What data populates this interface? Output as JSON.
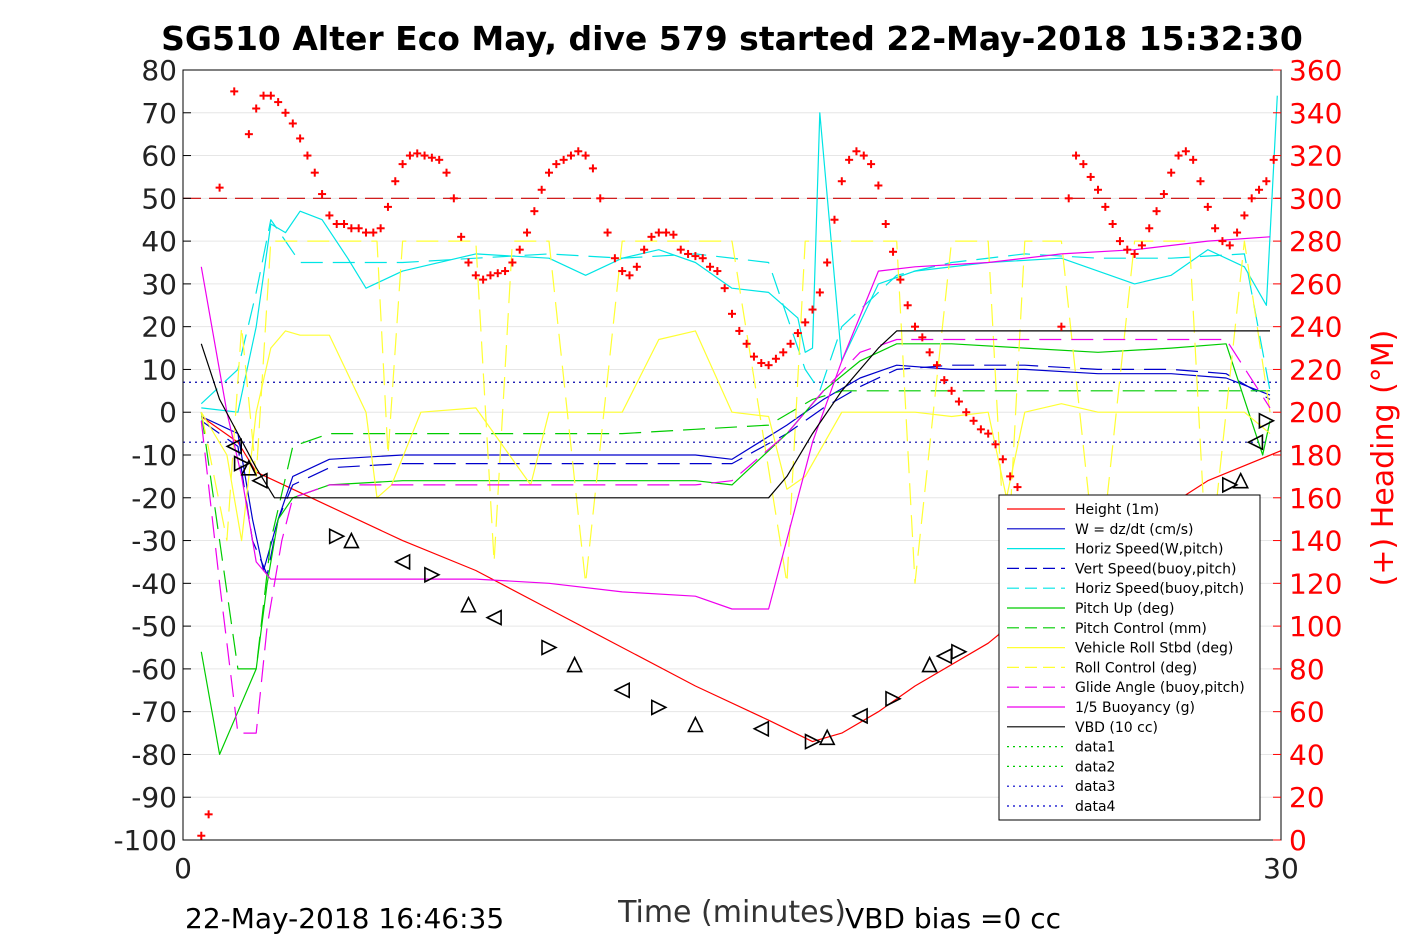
{
  "footer": {
    "timestamp": "22-May-2018 16:46:35",
    "vbd_bias": "VBD bias =0 cc"
  },
  "chart_data": {
    "type": "line",
    "title": "SG510 Alter Eco May, dive 579 started 22-May-2018 15:32:30",
    "xlabel": "Time (minutes)",
    "ylabel": "",
    "y2label": "(+) Heading (°M)",
    "xlim": [
      0,
      30
    ],
    "ylim": [
      -100,
      80
    ],
    "y2lim": [
      0,
      360
    ],
    "xticks": [
      0,
      30
    ],
    "yticks": [
      80,
      70,
      60,
      50,
      40,
      30,
      20,
      10,
      0,
      -10,
      -20,
      -30,
      -40,
      -50,
      -60,
      -70,
      -80,
      -90,
      -100
    ],
    "y2ticks": [
      360,
      340,
      320,
      300,
      280,
      260,
      240,
      220,
      200,
      180,
      160,
      140,
      120,
      100,
      80,
      60,
      40,
      20,
      0
    ],
    "grid": true,
    "legend_position": "lower-right",
    "colors": {
      "heading": "#ff0000",
      "axis": "#000000",
      "right_axis": "#ff0000"
    },
    "reference_lines": [
      {
        "y2": 300,
        "style": "dashed",
        "color": "#cc0000"
      },
      {
        "y": 7,
        "style": "dotted",
        "color": "#0000aa"
      },
      {
        "y": -7,
        "style": "dotted",
        "color": "#0000aa"
      }
    ],
    "series": [
      {
        "name": "Height (1m)",
        "color": "#ff0000",
        "dash": "",
        "x": [
          0.5,
          1.5,
          2.0,
          4,
          6,
          8,
          10,
          12,
          14,
          16,
          17.2,
          18,
          19,
          20,
          22,
          24,
          26,
          28,
          30
        ],
        "y": [
          -1,
          -7,
          -14,
          -22,
          -30,
          -37,
          -46,
          -55,
          -64,
          -72,
          -77,
          -75,
          -70,
          -64,
          -54,
          -40,
          -27,
          -16,
          -9
        ]
      },
      {
        "name": "W = dz/dt (cm/s)",
        "color": "#0000cc",
        "dash": "",
        "x": [
          0.5,
          1.5,
          1.9,
          2.2,
          2.6,
          3,
          4,
          6,
          8,
          10,
          12,
          14,
          15,
          16.5,
          17.5,
          18.5,
          19.5,
          21,
          23,
          25,
          27,
          28.5,
          29.7
        ],
        "y": [
          -1,
          -5,
          -25,
          -37,
          -25,
          -15,
          -11,
          -10,
          -10,
          -10,
          -10,
          -10,
          -11,
          -3,
          3,
          8,
          11,
          10,
          10,
          9,
          9,
          8,
          4
        ]
      },
      {
        "name": "Horiz Speed(W,pitch)",
        "color": "#00e5e5",
        "dash": "",
        "x": [
          0.5,
          1.5,
          2.0,
          2.4,
          2.8,
          3.2,
          3.8,
          4.5,
          5,
          6,
          8,
          10,
          11,
          12,
          13,
          14,
          15,
          16,
          16.8,
          17.0,
          17.2,
          17.4,
          18,
          19,
          20,
          22,
          24,
          26,
          27,
          28,
          29,
          29.6,
          29.9
        ],
        "y": [
          1,
          0,
          20,
          44,
          42,
          47,
          45,
          36,
          29,
          33,
          37,
          36,
          32,
          36,
          38,
          35,
          29,
          28,
          22,
          14,
          15,
          70,
          12,
          30,
          33,
          35,
          36,
          30,
          32,
          38,
          34,
          25,
          74
        ]
      },
      {
        "name": "Vert Speed(buoy,pitch)",
        "color": "#0000cc",
        "dash": "22 10",
        "x": [
          0.5,
          1.5,
          1.9,
          2.3,
          2.6,
          3,
          4,
          6,
          8,
          10,
          12,
          14,
          15,
          16.5,
          17.5,
          18.5,
          19.5,
          21,
          23,
          25,
          27,
          28.5,
          29.7
        ],
        "y": [
          -2,
          -8,
          -30,
          -38,
          -25,
          -17,
          -13,
          -12,
          -12,
          -12,
          -12,
          -12,
          -12,
          -5,
          1,
          6,
          10,
          11,
          11,
          10,
          10,
          9,
          3
        ]
      },
      {
        "name": "Horiz Speed(buoy,pitch)",
        "color": "#00e5e5",
        "dash": "22 10",
        "x": [
          0.5,
          1.5,
          2.0,
          2.4,
          2.8,
          3.2,
          4,
          6,
          8,
          10,
          12,
          14,
          16,
          17.0,
          17.4,
          18,
          19.5,
          21,
          23,
          25,
          27,
          29,
          29.7
        ],
        "y": [
          2,
          10,
          28,
          45,
          40,
          35,
          35,
          35,
          36,
          37,
          36,
          37,
          35,
          10,
          5,
          20,
          32,
          35,
          37,
          36,
          36,
          37,
          5
        ]
      },
      {
        "name": "Pitch Up (deg)",
        "color": "#00cc00",
        "dash": "",
        "x": [
          0.5,
          1.0,
          1.5,
          2.0,
          2.3,
          2.6,
          3,
          4,
          6,
          8,
          10,
          12,
          14,
          15,
          16.5,
          17.5,
          18.5,
          19.5,
          21,
          23,
          25,
          27,
          28.5,
          29.5,
          29.7
        ],
        "y": [
          -56,
          -80,
          -70,
          -60,
          -40,
          -25,
          -20,
          -17,
          -16,
          -16,
          -16,
          -16,
          -16,
          -17,
          -5,
          5,
          12,
          16,
          16,
          15,
          14,
          15,
          16,
          -10,
          -2
        ]
      },
      {
        "name": "Pitch Control (mm)",
        "color": "#00cc00",
        "dash": "22 10",
        "x": [
          0.5,
          1.0,
          1.5,
          2.0,
          2.4,
          3,
          4,
          6,
          8,
          10,
          12,
          14,
          16,
          17.2,
          18,
          20,
          22,
          24,
          26,
          28,
          29.7
        ],
        "y": [
          0,
          -30,
          -60,
          -60,
          -30,
          -8,
          -5,
          -5,
          -5,
          -5,
          -5,
          -4,
          -3,
          3,
          5,
          5,
          5,
          5,
          5,
          5,
          5
        ]
      },
      {
        "name": "Vehicle Roll Stbd (deg)",
        "color": "#ffff33",
        "dash": "",
        "x": [
          0.5,
          1.2,
          1.6,
          2.0,
          2.4,
          2.8,
          3.2,
          4,
          5,
          5.3,
          5.7,
          6.5,
          8,
          9.5,
          10,
          11,
          12,
          13,
          14,
          15,
          16,
          16.5,
          17,
          18,
          19,
          20,
          21,
          22,
          22.5,
          23,
          24,
          25,
          26,
          27,
          28,
          29,
          29.7
        ],
        "y": [
          0,
          -10,
          -30,
          0,
          15,
          19,
          18,
          18,
          0,
          -20,
          -17,
          0,
          1,
          -17,
          0,
          0,
          0,
          17,
          19,
          0,
          -1,
          -18,
          -15,
          0,
          0,
          0,
          -1,
          0,
          -20,
          0,
          2,
          0,
          0,
          0,
          0,
          0,
          -5
        ]
      },
      {
        "name": "Roll Control (deg)",
        "color": "#ffff33",
        "dash": "22 10",
        "x": [
          0.5,
          1.2,
          1.6,
          2.0,
          2.4,
          2.8,
          3.2,
          4,
          5.3,
          5.6,
          6,
          8,
          8.5,
          9,
          10,
          11,
          12,
          13,
          14,
          15,
          16.5,
          17,
          18,
          19.5,
          20,
          21,
          22,
          22.5,
          23,
          24,
          25,
          26,
          27.5,
          28,
          29,
          29.7
        ],
        "y": [
          0,
          -30,
          20,
          -15,
          40,
          40,
          40,
          40,
          40,
          -10,
          40,
          40,
          -35,
          40,
          40,
          -40,
          40,
          40,
          40,
          40,
          -40,
          40,
          40,
          40,
          -40,
          40,
          40,
          -40,
          40,
          40,
          -40,
          40,
          40,
          -40,
          40,
          0
        ]
      },
      {
        "name": "Glide Angle (buoy,pitch)",
        "color": "#ee00ee",
        "dash": "22 10",
        "x": [
          0.5,
          1.0,
          1.5,
          2.0,
          2.3,
          2.7,
          3,
          4,
          6,
          8,
          10,
          12,
          14,
          15,
          16.5,
          17.5,
          18.5,
          19.5,
          21,
          23,
          25,
          27,
          28.5,
          29.7
        ],
        "y": [
          -2,
          -40,
          -75,
          -75,
          -50,
          -30,
          -20,
          -17,
          -17,
          -17,
          -17,
          -17,
          -17,
          -16,
          -5,
          5,
          14,
          17,
          17,
          17,
          17,
          17,
          17,
          1
        ]
      },
      {
        "name": "1/5 Buoyancy (g)",
        "color": "#ee00ee",
        "dash": "",
        "x": [
          0.5,
          1.2,
          1.6,
          2.0,
          2.4,
          2.8,
          4,
          6,
          8,
          10,
          12,
          14,
          15,
          16,
          17.2,
          18,
          19,
          20,
          22,
          24,
          26,
          28,
          29.7
        ],
        "y": [
          34,
          0,
          -15,
          -35,
          -39,
          -39,
          -39,
          -39,
          -39,
          -40,
          -42,
          -43,
          -46,
          -46,
          -7,
          12,
          33,
          34,
          35,
          37,
          38,
          40,
          41
        ]
      },
      {
        "name": "VBD (10 cc)",
        "color": "#000000",
        "dash": "",
        "x": [
          0.5,
          1.0,
          1.5,
          2.0,
          2.5,
          4,
          6,
          8,
          10,
          12,
          14,
          16,
          16.5,
          17.2,
          18,
          19,
          19.5,
          20,
          22,
          24,
          26,
          28,
          29.7
        ],
        "y": [
          16,
          3,
          -5,
          -13,
          -20,
          -20,
          -20,
          -20,
          -20,
          -20,
          -20,
          -20,
          -15,
          -5,
          5,
          15,
          19,
          19,
          19,
          19,
          19,
          19,
          19
        ]
      },
      {
        "name": "data1",
        "color": "#00cc00",
        "dash": "2 4",
        "x": [],
        "y": []
      },
      {
        "name": "data2",
        "color": "#00cc00",
        "dash": "2 4",
        "x": [],
        "y": []
      },
      {
        "name": "data3",
        "color": "#0000cc",
        "dash": "2 4",
        "x": [],
        "y": []
      },
      {
        "name": "data4",
        "color": "#0000cc",
        "dash": "2 4",
        "x": [],
        "y": []
      }
    ],
    "heading_points": {
      "color": "#ff0000",
      "x": [
        0.5,
        0.7,
        1.0,
        1.4,
        1.8,
        2.0,
        2.2,
        2.4,
        2.6,
        2.8,
        3.0,
        3.2,
        3.4,
        3.6,
        3.8,
        4.0,
        4.2,
        4.4,
        4.6,
        4.8,
        5.0,
        5.2,
        5.4,
        5.6,
        5.8,
        6.0,
        6.2,
        6.4,
        6.6,
        6.8,
        7.0,
        7.2,
        7.4,
        7.6,
        7.8,
        8.0,
        8.2,
        8.4,
        8.6,
        8.8,
        9.0,
        9.2,
        9.4,
        9.6,
        9.8,
        10.0,
        10.2,
        10.4,
        10.6,
        10.8,
        11.0,
        11.2,
        11.4,
        11.6,
        11.8,
        12.0,
        12.2,
        12.4,
        12.6,
        12.8,
        13.0,
        13.2,
        13.4,
        13.6,
        13.8,
        14.0,
        14.2,
        14.4,
        14.6,
        14.8,
        15.0,
        15.2,
        15.4,
        15.6,
        15.8,
        16.0,
        16.2,
        16.4,
        16.6,
        16.8,
        17.0,
        17.2,
        17.4,
        17.6,
        17.8,
        18.0,
        18.2,
        18.4,
        18.6,
        18.8,
        19.0,
        19.2,
        19.4,
        19.6,
        19.8,
        20.0,
        20.2,
        20.4,
        20.6,
        20.8,
        21.0,
        21.2,
        21.4,
        21.6,
        21.8,
        22.0,
        22.2,
        22.4,
        22.6,
        22.8,
        23.0,
        23.2,
        23.4,
        23.6,
        23.8,
        24.0,
        24.2,
        24.4,
        24.6,
        24.8,
        25.0,
        25.2,
        25.4,
        25.6,
        25.8,
        26.0,
        26.2,
        26.4,
        26.6,
        26.8,
        27.0,
        27.2,
        27.4,
        27.6,
        27.8,
        28.0,
        28.2,
        28.4,
        28.6,
        28.8,
        29.0,
        29.2,
        29.4,
        29.6,
        29.8
      ],
      "y": [
        2,
        12,
        305,
        350,
        330,
        342,
        348,
        348,
        345,
        340,
        335,
        328,
        320,
        312,
        302,
        292,
        288,
        288,
        286,
        286,
        284,
        284,
        286,
        296,
        308,
        316,
        320,
        321,
        320,
        319,
        318,
        312,
        300,
        282,
        270,
        264,
        262,
        264,
        265,
        266,
        270,
        276,
        284,
        294,
        304,
        312,
        316,
        318,
        320,
        322,
        320,
        314,
        300,
        284,
        272,
        266,
        264,
        268,
        276,
        282,
        284,
        284,
        283,
        276,
        274,
        273,
        272,
        268,
        266,
        258,
        246,
        238,
        232,
        226,
        223,
        222,
        225,
        228,
        232,
        237,
        242,
        248,
        256,
        270,
        290,
        308,
        318,
        322,
        320,
        316,
        306,
        288,
        275,
        262,
        250,
        240,
        235,
        228,
        222,
        215,
        210,
        205,
        200,
        196,
        192,
        190,
        185,
        178,
        170,
        165,
        158,
        150,
        140,
        132,
        125,
        240,
        300,
        320,
        316,
        310,
        304,
        296,
        288,
        280,
        276,
        274,
        278,
        286,
        294,
        302,
        312,
        320,
        322,
        318,
        308,
        296,
        286,
        280,
        278,
        284,
        292,
        300,
        304,
        308,
        318
      ]
    },
    "marker_points": {
      "x": [
        1.4,
        1.6,
        1.8,
        2.1,
        4.2,
        4.6,
        6.0,
        6.8,
        7.8,
        8.5,
        10.0,
        10.7,
        12.0,
        13.0,
        14.0,
        15.8,
        17.2,
        17.6,
        18.5,
        19.4,
        20.4,
        20.8,
        21.2,
        22.5,
        23.0,
        23.2,
        24.0,
        24.5,
        24.8,
        26.4,
        26.8,
        28.6,
        28.9,
        29.3,
        29.6
      ],
      "y": [
        -8,
        -12,
        -13,
        -16,
        -29,
        -30,
        -35,
        -38,
        -45,
        -48,
        -55,
        -59,
        -65,
        -69,
        -73,
        -74,
        -77,
        -76,
        -71,
        -67,
        -59,
        -57,
        -56,
        -50,
        -44,
        -43,
        -36,
        -33,
        -32,
        -26,
        -25,
        -17,
        -16,
        -7,
        -2
      ]
    }
  }
}
